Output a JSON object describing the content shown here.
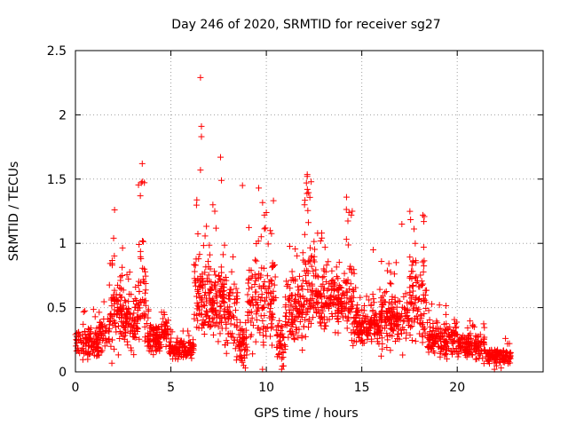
{
  "chart_data": {
    "type": "scatter",
    "title": "Day 246 of 2020, SRMTID for receiver sg27",
    "xlabel": "GPS time / hours",
    "ylabel": "SRMTID / TECUs",
    "xlim": [
      0,
      24.5
    ],
    "ylim": [
      0,
      2.5
    ],
    "x_ticks": [
      0,
      5,
      10,
      15,
      20
    ],
    "x_tick_labels": [
      "0",
      "5",
      "10",
      "15",
      "20"
    ],
    "y_ticks": [
      0,
      0.5,
      1,
      1.5,
      2,
      2.5
    ],
    "y_tick_labels": [
      "0",
      "0.5",
      "1",
      "1.5",
      "2",
      "2.5"
    ],
    "grid": true,
    "marker": "+",
    "color": "#ff0000",
    "series": [
      {
        "name": "SRMTID",
        "segments": [
          {
            "x_start": 0.0,
            "x_end": 1.2,
            "base": 0.22,
            "spread": 0.18,
            "count": 110
          },
          {
            "x_start": 1.2,
            "x_end": 1.8,
            "base": 0.3,
            "spread": 0.25,
            "count": 50
          },
          {
            "x_start": 1.8,
            "x_end": 2.6,
            "base": 0.45,
            "spread": 0.4,
            "count": 90
          },
          {
            "x_start": 2.6,
            "x_end": 3.3,
            "base": 0.4,
            "spread": 0.35,
            "count": 80
          },
          {
            "x_start": 3.3,
            "x_end": 3.7,
            "base": 0.6,
            "spread": 0.55,
            "count": 45
          },
          {
            "x_start": 3.7,
            "x_end": 4.5,
            "base": 0.25,
            "spread": 0.15,
            "count": 80
          },
          {
            "x_start": 4.5,
            "x_end": 4.9,
            "base": 0.35,
            "spread": 0.18,
            "count": 35
          },
          {
            "x_start": 4.9,
            "x_end": 6.2,
            "base": 0.18,
            "spread": 0.1,
            "count": 120
          },
          {
            "x_start": 6.2,
            "x_end": 6.8,
            "base": 0.55,
            "spread": 0.5,
            "count": 70
          },
          {
            "x_start": 6.8,
            "x_end": 7.8,
            "base": 0.55,
            "spread": 0.4,
            "count": 120
          },
          {
            "x_start": 7.8,
            "x_end": 8.5,
            "base": 0.45,
            "spread": 0.4,
            "count": 70
          },
          {
            "x_start": 8.5,
            "x_end": 9.0,
            "base": 0.2,
            "spread": 0.2,
            "count": 50
          },
          {
            "x_start": 9.0,
            "x_end": 10.5,
            "base": 0.55,
            "spread": 0.5,
            "count": 140
          },
          {
            "x_start": 10.5,
            "x_end": 11.0,
            "base": 0.2,
            "spread": 0.25,
            "count": 45
          },
          {
            "x_start": 11.0,
            "x_end": 12.0,
            "base": 0.5,
            "spread": 0.4,
            "count": 110
          },
          {
            "x_start": 12.0,
            "x_end": 12.6,
            "base": 0.7,
            "spread": 0.55,
            "count": 70
          },
          {
            "x_start": 12.6,
            "x_end": 14.0,
            "base": 0.55,
            "spread": 0.35,
            "count": 150
          },
          {
            "x_start": 14.0,
            "x_end": 14.6,
            "base": 0.55,
            "spread": 0.45,
            "count": 60
          },
          {
            "x_start": 14.6,
            "x_end": 16.0,
            "base": 0.35,
            "spread": 0.2,
            "count": 140
          },
          {
            "x_start": 16.0,
            "x_end": 17.5,
            "base": 0.4,
            "spread": 0.3,
            "count": 150
          },
          {
            "x_start": 17.5,
            "x_end": 18.4,
            "base": 0.55,
            "spread": 0.45,
            "count": 90
          },
          {
            "x_start": 18.4,
            "x_end": 20.0,
            "base": 0.25,
            "spread": 0.18,
            "count": 150
          },
          {
            "x_start": 20.0,
            "x_end": 21.5,
            "base": 0.2,
            "spread": 0.15,
            "count": 140
          },
          {
            "x_start": 21.5,
            "x_end": 22.8,
            "base": 0.12,
            "spread": 0.09,
            "count": 110
          }
        ],
        "highlights": [
          {
            "x": 6.55,
            "y": 2.29
          },
          {
            "x": 6.6,
            "y": 1.91
          },
          {
            "x": 6.6,
            "y": 1.83
          },
          {
            "x": 6.55,
            "y": 1.57
          },
          {
            "x": 7.6,
            "y": 1.67
          },
          {
            "x": 7.65,
            "y": 1.49
          },
          {
            "x": 3.5,
            "y": 1.62
          },
          {
            "x": 3.45,
            "y": 1.47
          },
          {
            "x": 3.5,
            "y": 1.48
          },
          {
            "x": 3.4,
            "y": 1.37
          },
          {
            "x": 2.05,
            "y": 1.26
          },
          {
            "x": 2.0,
            "y": 1.04
          },
          {
            "x": 8.75,
            "y": 1.45
          },
          {
            "x": 9.6,
            "y": 1.43
          },
          {
            "x": 9.9,
            "y": 1.22
          },
          {
            "x": 10.0,
            "y": 1.24
          },
          {
            "x": 12.1,
            "y": 1.47
          },
          {
            "x": 12.15,
            "y": 1.42
          },
          {
            "x": 12.0,
            "y": 1.3
          },
          {
            "x": 14.2,
            "y": 1.36
          },
          {
            "x": 14.5,
            "y": 1.25
          },
          {
            "x": 14.45,
            "y": 1.22
          },
          {
            "x": 17.1,
            "y": 1.15
          },
          {
            "x": 18.2,
            "y": 1.22
          },
          {
            "x": 18.25,
            "y": 1.17
          },
          {
            "x": 7.2,
            "y": 1.3
          },
          {
            "x": 7.3,
            "y": 1.25
          },
          {
            "x": 9.95,
            "y": 1.12
          },
          {
            "x": 10.2,
            "y": 1.1
          },
          {
            "x": 12.9,
            "y": 1.08
          },
          {
            "x": 15.6,
            "y": 0.95
          },
          {
            "x": 16.8,
            "y": 0.85
          },
          {
            "x": 17.8,
            "y": 1.0
          },
          {
            "x": 9.8,
            "y": 0.02
          },
          {
            "x": 10.8,
            "y": 0.02
          },
          {
            "x": 21.95,
            "y": 0.02
          },
          {
            "x": 22.3,
            "y": 0.03
          },
          {
            "x": 8.9,
            "y": 0.03
          }
        ]
      }
    ]
  }
}
